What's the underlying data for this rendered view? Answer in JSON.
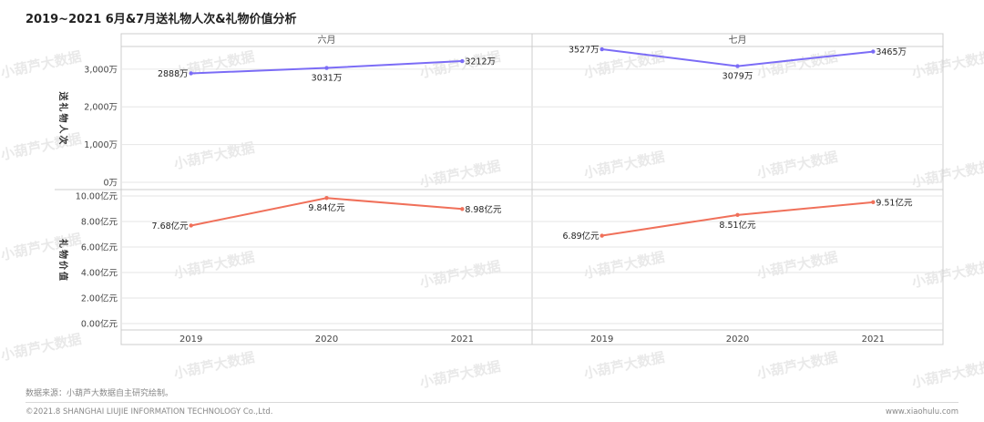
{
  "title": "2019~2021 6月&7月送礼物人次&礼物价值分析",
  "watermark_text": "小葫芦大数据",
  "footer": {
    "source": "数据来源：小葫芦大数据自主研究绘制。",
    "copyright": "©2021.8 SHANGHAI LIUJIE INFORMATION  TECHNOLOGY Co.,Ltd.",
    "url": "www.xiaohulu.com"
  },
  "colors": {
    "purple_line": "#7B6CF6",
    "red_line": "#F0705A",
    "grid": "#e6e6e6",
    "frame": "#cccccc"
  },
  "chart_data": {
    "type": "line",
    "panels": [
      "六月",
      "七月"
    ],
    "categories": [
      "2019",
      "2020",
      "2021"
    ],
    "rows": [
      {
        "ylabel": "送礼物人次",
        "ylim": [
          0,
          3600
        ],
        "ticks": [
          0,
          1000,
          2000,
          3000
        ],
        "tick_labels": [
          "0万",
          "1,000万",
          "2,000万",
          "3,000万"
        ],
        "color": "#7B6CF6",
        "values": {
          "六月": [
            2888,
            3031,
            3212
          ],
          "七月": [
            3527,
            3079,
            3465
          ]
        },
        "data_labels": {
          "六月": [
            "2888万",
            "3031万",
            "3212万"
          ],
          "七月": [
            "3527万",
            "3079万",
            "3465万"
          ]
        }
      },
      {
        "ylabel": "礼物价值",
        "ylim": [
          0,
          10.5
        ],
        "ticks": [
          0,
          2,
          4,
          6,
          8,
          10
        ],
        "tick_labels": [
          "0.00亿元",
          "2.00亿元",
          "4.00亿元",
          "6.00亿元",
          "8.00亿元",
          "10.00亿元"
        ],
        "color": "#F0705A",
        "values": {
          "六月": [
            7.68,
            9.84,
            8.98
          ],
          "七月": [
            6.89,
            8.51,
            9.51
          ]
        },
        "data_labels": {
          "六月": [
            "7.68亿元",
            "9.84亿元",
            "8.98亿元"
          ],
          "七月": [
            "6.89亿元",
            "8.51亿元",
            "9.51亿元"
          ]
        }
      }
    ],
    "grid": true,
    "legend": "none"
  }
}
